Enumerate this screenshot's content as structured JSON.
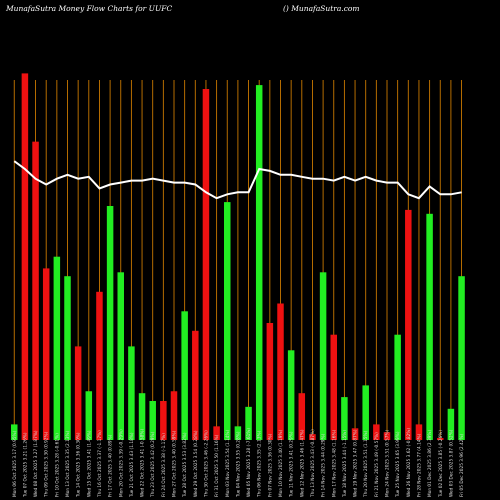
{
  "header": {
    "left_title": "MunafaSutra  Money Flow  Charts for UUFC",
    "right_title": "() MunafaSutra.com"
  },
  "chart_data": {
    "type": "bar",
    "title": "MunafaSutra  Money Flow  Charts for UUFC",
    "xlabel": "",
    "ylabel": "",
    "ylim": [
      0,
      100
    ],
    "colors": {
      "up": "#22ee22",
      "down": "#ee1111",
      "line": "#ffffff",
      "gridline": "#c87800",
      "background": "#000000"
    },
    "categories": [
      "Fri 05 Dec 2025 3.96 (2.42%)",
      "Wed 03 Dec 2025 3.87 (0.52%)",
      "Tue 02 Dec 2025 3.85 (-0.26%)",
      "Mon 01 Dec 2025 3.86 (2.39%)",
      "Fri 28 Nov 2025 3.77 (4.14%)",
      "Wed 26 Nov 2025 3.62 (-0.82%)",
      "Tue 25 Nov 2025 3.65 (3.99%)",
      "Mon 24 Nov 2025 3.51 (0.57%)",
      "Fri 21 Nov 2025 3.49 (-0.57%)",
      "Thu 20 Nov 2025 3.51 (1.15%)",
      "Wed 19 Nov 2025 3.47 (0.87%)",
      "Tue 18 Nov 2025 3.44 (-1.15%)",
      "Mon 17 Nov 2025 3.48 (1.16%)",
      "Fri 14 Nov 2025 3.44 (0.29%)",
      "Thu 13 Nov 2025 3.43 (-0.87%)",
      "Wed 12 Nov 2025 3.46 (1.47%)",
      "Tue 11 Nov 2025 3.41 (0.29%)",
      "Mon 10 Nov 2025 3.40 (1.19%)",
      "Fri 07 Nov 2025 3.36 (0.30%)",
      "Thu 06 Nov 2025 3.35 (2.13%)",
      "Wed 05 Nov 2025 3.28 (-7.61%)",
      "Tue 04 Nov 2025 3.55 (0.28%)",
      "Mon 03 Nov 2025 3.54 (1.14%)",
      "Fri 31 Oct 2025 3.50 (1.16%)",
      "Thu 30 Oct 2025 3.46 (-2.26%)",
      "Wed 29 Oct 2025 3.54 (0.28%)",
      "Tue 28 Oct 2025 3.53 (3.82%)",
      "Mon 27 Oct 2025 3.40 (0.59%)",
      "Fri 24 Oct 2025 3.38 (-1.17%)",
      "Thu 23 Oct 2025 3.42 (0.29%)",
      "Wed 22 Oct 2025 3.41 (-0.58%)",
      "Tue 21 Oct 2025 3.43 (1.18%)",
      "Mon 20 Oct 2025 3.39 (-0.29%)",
      "Fri 17 Oct 2025 3.40 (0.89%)",
      "Thu 16 Oct 2025 3.37 (-1.17%)",
      "Wed 15 Oct 2025 3.41 (1.49%)",
      "Tue 14 Oct 2025 3.36 (0.30%)",
      "Mon 13 Oct 2025 3.35 (2.13%)",
      "Fri 10 Oct 2025 3.28 (-0.61%)",
      "Thu 09 Oct 2025 3.30 (0.92%)",
      "Wed 08 Oct 2025 3.27 (1.87%)",
      "Tue 07 Oct 2025 3.21 (1.26%)",
      "Mon 06 Oct 2025 3.17 (0.95%)"
    ],
    "series": [
      {
        "values": [
          42,
          8,
          0.5,
          58,
          4,
          59,
          27,
          2,
          4,
          14,
          3,
          11,
          27,
          43,
          1.5,
          12,
          23,
          35,
          30,
          91,
          8.5,
          3.5,
          61,
          3.5,
          90,
          28,
          33,
          12.5,
          10,
          10,
          12,
          24,
          43,
          60,
          38,
          12.5,
          24,
          42,
          47,
          44,
          76.5,
          94,
          4
        ]
      }
    ],
    "line": [
      63.5,
      63,
      63,
      65,
      62,
      63,
      66,
      66,
      66.5,
      67.5,
      66.5,
      67.5,
      66.5,
      67,
      67,
      67.5,
      68,
      68,
      69,
      69.5,
      63.5,
      63.5,
      63,
      62,
      63.5,
      65.5,
      66,
      66,
      66.5,
      67,
      66.5,
      66.5,
      66,
      65.5,
      64.5,
      67.5,
      67,
      68,
      67,
      65.5,
      67,
      69.5,
      71.5
    ]
  }
}
